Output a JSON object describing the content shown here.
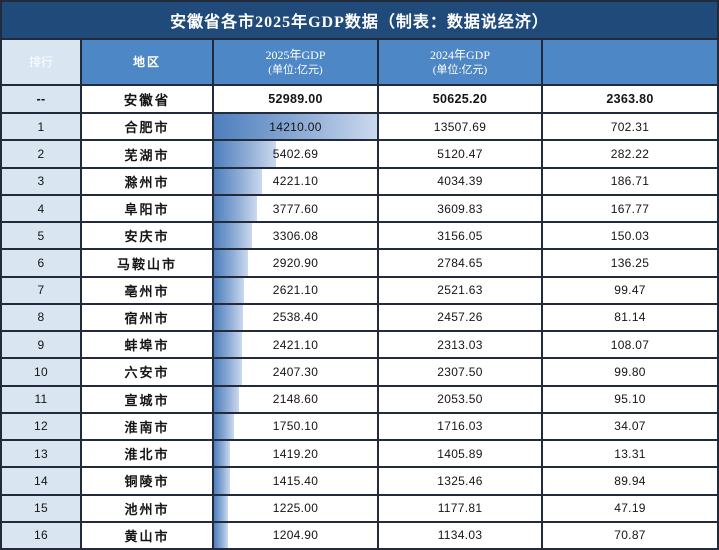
{
  "title": "安徽省各市2025年GDP数据（制表：数据说经济）",
  "colors": {
    "title_bg": "#1F4A7A",
    "header_bg": "#4E87C5",
    "rank_bg": "#D9E5F1",
    "grid": "#222B3C",
    "bar_from": "#4E7FBD",
    "bar_to": "#CBD9EE"
  },
  "chart_data": {
    "type": "table",
    "title": "安徽省各市2025年GDP数据（制表：数据说经济）",
    "unit": "亿元",
    "headers": {
      "rank": "排行",
      "region": "地区",
      "gdp2025": [
        "2025年GDP",
        "(单位:亿元)"
      ],
      "gdp2024": [
        "2024年GDP",
        "(单位:亿元)"
      ],
      "diff": ""
    },
    "bar_column": "gdp2025",
    "bar_max": 14210.0,
    "bar_note": "2025年GDP column shows proportional blue gradient data bars; province total row has no bar",
    "rows": [
      {
        "rank": "--",
        "region": "安徽省",
        "gdp2025": "52989.00",
        "gdp2024": "50625.20",
        "diff": "2363.80"
      },
      {
        "rank": "1",
        "region": "合肥市",
        "gdp2025": "14210.00",
        "gdp2024": "13507.69",
        "diff": "702.31"
      },
      {
        "rank": "2",
        "region": "芜湖市",
        "gdp2025": "5402.69",
        "gdp2024": "5120.47",
        "diff": "282.22"
      },
      {
        "rank": "3",
        "region": "滁州市",
        "gdp2025": "4221.10",
        "gdp2024": "4034.39",
        "diff": "186.71"
      },
      {
        "rank": "4",
        "region": "阜阳市",
        "gdp2025": "3777.60",
        "gdp2024": "3609.83",
        "diff": "167.77"
      },
      {
        "rank": "5",
        "region": "安庆市",
        "gdp2025": "3306.08",
        "gdp2024": "3156.05",
        "diff": "150.03"
      },
      {
        "rank": "6",
        "region": "马鞍山市",
        "gdp2025": "2920.90",
        "gdp2024": "2784.65",
        "diff": "136.25"
      },
      {
        "rank": "7",
        "region": "亳州市",
        "gdp2025": "2621.10",
        "gdp2024": "2521.63",
        "diff": "99.47"
      },
      {
        "rank": "8",
        "region": "宿州市",
        "gdp2025": "2538.40",
        "gdp2024": "2457.26",
        "diff": "81.14"
      },
      {
        "rank": "9",
        "region": "蚌埠市",
        "gdp2025": "2421.10",
        "gdp2024": "2313.03",
        "diff": "108.07"
      },
      {
        "rank": "10",
        "region": "六安市",
        "gdp2025": "2407.30",
        "gdp2024": "2307.50",
        "diff": "99.80"
      },
      {
        "rank": "11",
        "region": "宣城市",
        "gdp2025": "2148.60",
        "gdp2024": "2053.50",
        "diff": "95.10"
      },
      {
        "rank": "12",
        "region": "淮南市",
        "gdp2025": "1750.10",
        "gdp2024": "1716.03",
        "diff": "34.07"
      },
      {
        "rank": "13",
        "region": "淮北市",
        "gdp2025": "1419.20",
        "gdp2024": "1405.89",
        "diff": "13.31"
      },
      {
        "rank": "14",
        "region": "铜陵市",
        "gdp2025": "1415.40",
        "gdp2024": "1325.46",
        "diff": "89.94"
      },
      {
        "rank": "15",
        "region": "池州市",
        "gdp2025": "1225.00",
        "gdp2024": "1177.81",
        "diff": "47.19"
      },
      {
        "rank": "16",
        "region": "黄山市",
        "gdp2025": "1204.90",
        "gdp2024": "1134.03",
        "diff": "70.87"
      }
    ]
  }
}
